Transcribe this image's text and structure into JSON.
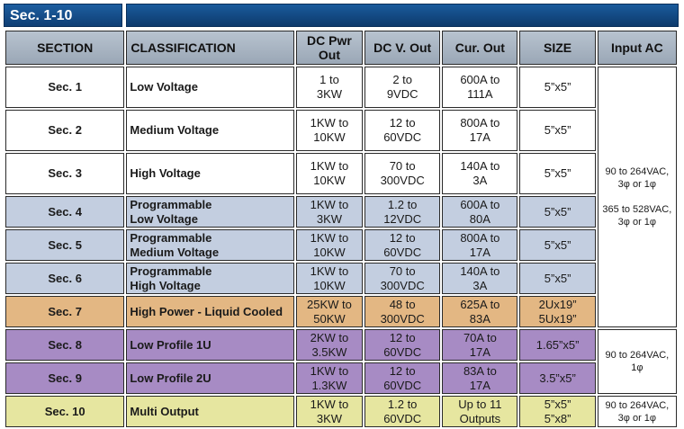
{
  "tab_label": "Sec. 1-10",
  "columns": [
    "SECTION",
    "CLASSIFICATION",
    "DC Pwr Out",
    "DC V. Out",
    "Cur. Out",
    "SIZE",
    "Input AC"
  ],
  "rows": [
    {
      "section": "Sec. 1",
      "classification_1": "Low  Voltage",
      "classification_2": "",
      "power_1": "1 to",
      "power_2": "3KW",
      "volt_1": "2 to",
      "volt_2": "9VDC",
      "cur_1": "600A to",
      "cur_2": "111A",
      "size_1": "5”x5”",
      "size_2": ""
    },
    {
      "section": "Sec. 2",
      "classification_1": "Medium Voltage",
      "classification_2": "",
      "power_1": "1KW to",
      "power_2": "10KW",
      "volt_1": "12 to",
      "volt_2": "60VDC",
      "cur_1": "800A to",
      "cur_2": "17A",
      "size_1": "5”x5”",
      "size_2": ""
    },
    {
      "section": "Sec. 3",
      "classification_1": "High Voltage",
      "classification_2": "",
      "power_1": "1KW to",
      "power_2": "10KW",
      "volt_1": "70 to",
      "volt_2": "300VDC",
      "cur_1": "140A to",
      "cur_2": "3A",
      "size_1": "5”x5”",
      "size_2": ""
    },
    {
      "section": "Sec. 4",
      "classification_1": "Programmable",
      "classification_2": "Low Voltage",
      "power_1": "1KW to",
      "power_2": "3KW",
      "volt_1": "1.2 to",
      "volt_2": "12VDC",
      "cur_1": "600A to",
      "cur_2": "80A",
      "size_1": "5”x5”",
      "size_2": ""
    },
    {
      "section": "Sec. 5",
      "classification_1": "Programmable",
      "classification_2": "Medium Voltage",
      "power_1": "1KW to",
      "power_2": "10KW",
      "volt_1": "12 to",
      "volt_2": "60VDC",
      "cur_1": "800A to",
      "cur_2": "17A",
      "size_1": "5”x5”",
      "size_2": ""
    },
    {
      "section": "Sec. 6",
      "classification_1": "Programmable",
      "classification_2": "High Voltage",
      "power_1": "1KW to",
      "power_2": "10KW",
      "volt_1": "70 to",
      "volt_2": "300VDC",
      "cur_1": "140A to",
      "cur_2": "3A",
      "size_1": "5”x5”",
      "size_2": ""
    },
    {
      "section": "Sec. 7",
      "classification_1": "High Power - Liquid Cooled",
      "classification_2": "",
      "power_1": "25KW to",
      "power_2": "50KW",
      "volt_1": "48 to",
      "volt_2": "300VDC",
      "cur_1": "625A to",
      "cur_2": "83A",
      "size_1": "2Ux19”",
      "size_2": "5Ux19”"
    },
    {
      "section": "Sec. 8",
      "classification_1": "Low Profile 1U",
      "classification_2": "",
      "power_1": "2KW to",
      "power_2": "3.5KW",
      "volt_1": "12 to",
      "volt_2": "60VDC",
      "cur_1": "70A to",
      "cur_2": "17A",
      "size_1": "1.65”x5”",
      "size_2": ""
    },
    {
      "section": "Sec. 9",
      "classification_1": "Low Profile 2U",
      "classification_2": "",
      "power_1": "1KW to",
      "power_2": "1.3KW",
      "volt_1": "12 to",
      "volt_2": "60VDC",
      "cur_1": "83A to",
      "cur_2": "17A",
      "size_1": "3.5”x5”",
      "size_2": ""
    },
    {
      "section": "Sec. 10",
      "classification_1": "Multi Output",
      "classification_2": "",
      "power_1": "1KW to",
      "power_2": "3KW",
      "volt_1": "1.2 to",
      "volt_2": "60VDC",
      "cur_1": "Up to 11",
      "cur_2": "Outputs",
      "size_1": "5”x5”",
      "size_2": "5”x8”"
    }
  ],
  "input_ac_notes": {
    "group_a_line1": "90 to 264VAC,",
    "group_a_line2": "3φ or 1φ",
    "group_a_line3": "365 to 528VAC,",
    "group_a_line4": "3φ or 1φ",
    "group_b_line1": "90 to 264VAC,",
    "group_b_line2": "1φ",
    "group_c_line1": "90 to 264VAC,",
    "group_c_line2": "3φ or 1φ"
  },
  "row_colors": {
    "white": "#ffffff",
    "blue": "#c3cee0",
    "orange": "#e3b783",
    "purple": "#a78bc4",
    "yellow": "#e6e6a0",
    "header": "#a9b5c3",
    "banner": "#144c88"
  }
}
